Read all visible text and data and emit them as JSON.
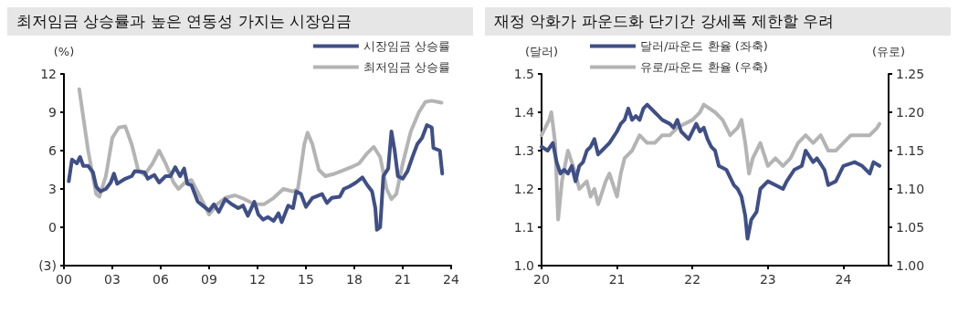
{
  "chart_data": [
    {
      "type": "line",
      "title": "최저임금 상승률과 높은 연동성 가지는 시장임금",
      "ylabel": "(%)",
      "legend": "top right",
      "grid": false,
      "marker": "none",
      "line_style": "solid",
      "xlim": [
        0,
        24
      ],
      "xticks": [
        {
          "value": 0,
          "label": "00"
        },
        {
          "value": 3,
          "label": "03"
        },
        {
          "value": 6,
          "label": "06"
        },
        {
          "value": 9,
          "label": "09"
        },
        12,
        15,
        18,
        21,
        24
      ],
      "ylim": [
        -3,
        12
      ],
      "yticks": [
        {
          "value": -3,
          "label": "(3)"
        },
        0,
        3,
        6,
        9,
        12
      ],
      "series": [
        {
          "name": "시장임금 상승률",
          "color": "#3f4f86",
          "x": [
            0.3,
            0.5,
            0.8,
            1.0,
            1.2,
            1.5,
            1.8,
            2.0,
            2.25,
            2.6,
            2.9,
            3.1,
            3.3,
            3.8,
            4.2,
            4.4,
            5.0,
            5.2,
            5.6,
            5.9,
            6.3,
            6.6,
            6.9,
            7.2,
            7.45,
            7.65,
            7.9,
            8.3,
            8.7,
            9.0,
            9.3,
            9.6,
            10.0,
            10.4,
            10.8,
            11.1,
            11.4,
            11.8,
            12.05,
            12.35,
            12.65,
            13.0,
            13.3,
            13.5,
            13.9,
            14.2,
            14.4,
            14.7,
            15.0,
            15.4,
            16.0,
            16.3,
            16.6,
            17.1,
            17.35,
            17.7,
            18.1,
            18.5,
            18.8,
            19.1,
            19.3,
            19.4,
            19.6,
            19.8,
            20.1,
            20.3,
            20.5,
            20.7,
            21.0,
            21.3,
            21.6,
            21.9,
            22.2,
            22.5,
            22.8,
            22.9,
            23.3,
            23.45
          ],
          "values": [
            3.6,
            5.3,
            5.0,
            5.5,
            4.8,
            4.8,
            4.3,
            3.2,
            2.8,
            3.0,
            3.5,
            4.2,
            3.4,
            3.8,
            4.0,
            4.4,
            4.3,
            3.8,
            4.1,
            3.5,
            4.0,
            4.0,
            4.7,
            4.0,
            4.6,
            3.4,
            3.3,
            2.0,
            1.6,
            1.3,
            1.8,
            1.2,
            2.2,
            1.8,
            1.5,
            1.7,
            0.9,
            2.0,
            1.0,
            0.6,
            0.8,
            0.5,
            1.1,
            0.4,
            1.7,
            1.5,
            2.8,
            2.6,
            1.6,
            2.3,
            2.6,
            1.9,
            2.3,
            2.4,
            3.0,
            3.2,
            3.5,
            3.9,
            3.3,
            2.8,
            1.5,
            -0.2,
            0.0,
            4.0,
            4.6,
            7.5,
            6.0,
            4.0,
            3.8,
            4.4,
            5.5,
            6.5,
            7.0,
            8.0,
            7.8,
            6.2,
            6.0,
            4.2
          ]
        },
        {
          "name": "최저임금 상승률",
          "color": "#b4b4b4",
          "x": [
            0.95,
            1.5,
            2.0,
            2.2,
            2.6,
            3.0,
            3.4,
            3.8,
            4.2,
            4.6,
            5.0,
            5.5,
            5.9,
            6.3,
            6.8,
            7.1,
            7.5,
            7.9,
            8.4,
            9.0,
            9.5,
            10.0,
            10.6,
            11.2,
            11.8,
            12.4,
            13.0,
            13.6,
            14.2,
            14.5,
            14.9,
            15.1,
            15.4,
            15.8,
            16.2,
            16.8,
            17.2,
            17.8,
            18.3,
            18.8,
            19.2,
            19.6,
            20.0,
            20.3,
            20.6,
            21.0,
            21.5,
            22.0,
            22.4,
            22.8,
            23.2,
            23.4
          ],
          "values": [
            10.8,
            6.0,
            2.6,
            2.4,
            4.0,
            7.0,
            7.8,
            7.9,
            6.5,
            4.5,
            4.1,
            5.0,
            6.0,
            5.0,
            3.5,
            3.0,
            3.5,
            3.7,
            2.5,
            1.0,
            1.8,
            2.3,
            2.5,
            2.2,
            1.8,
            1.8,
            2.3,
            3.0,
            2.8,
            3.0,
            6.5,
            7.4,
            6.5,
            4.5,
            4.0,
            4.2,
            4.4,
            4.7,
            5.0,
            5.8,
            6.3,
            5.5,
            3.0,
            2.2,
            2.6,
            5.0,
            7.5,
            9.0,
            9.8,
            9.9,
            9.8,
            9.75
          ]
        }
      ]
    },
    {
      "type": "line",
      "title": "재정 악화가 파운드화 단기간 강세폭 제한할 우려",
      "ylabel": "(달러)",
      "y2label": "(유로)",
      "legend": "top left",
      "grid": false,
      "marker": "none",
      "line_style": "solid",
      "xlim": [
        20,
        24.6
      ],
      "xticks": [
        20,
        21,
        22,
        23,
        24
      ],
      "ylim": [
        1.0,
        1.5
      ],
      "yticks": [
        {
          "value": 1.0,
          "label": "1.0"
        },
        1.1,
        1.2,
        1.3,
        1.4,
        1.5
      ],
      "y2lim": [
        1.0,
        1.25
      ],
      "y2ticks": [
        {
          "value": 1.0,
          "label": "1.00"
        },
        1.05,
        {
          "value": 1.1,
          "label": "1.10"
        },
        1.15,
        {
          "value": 1.2,
          "label": "1.20"
        },
        1.25
      ],
      "series": [
        {
          "name": "달러/파운드 환율 (좌축)",
          "color": "#3f4f86",
          "x": [
            20.0,
            20.08,
            20.15,
            20.2,
            20.25,
            20.3,
            20.35,
            20.4,
            20.45,
            20.5,
            20.55,
            20.6,
            20.65,
            20.7,
            20.75,
            20.8,
            20.9,
            21.0,
            21.05,
            21.1,
            21.15,
            21.2,
            21.25,
            21.3,
            21.35,
            21.4,
            21.5,
            21.55,
            21.6,
            21.7,
            21.75,
            21.8,
            21.85,
            21.95,
            22.05,
            22.1,
            22.15,
            22.2,
            22.25,
            22.3,
            22.35,
            22.45,
            22.5,
            22.55,
            22.6,
            22.65,
            22.7,
            22.73,
            22.78,
            22.85,
            22.9,
            23.0,
            23.1,
            23.2,
            23.25,
            23.35,
            23.45,
            23.5,
            23.6,
            23.65,
            23.75,
            23.8,
            23.9,
            24.0,
            24.15,
            24.25,
            24.35,
            24.4,
            24.48
          ],
          "values": [
            1.31,
            1.3,
            1.32,
            1.27,
            1.24,
            1.25,
            1.24,
            1.26,
            1.22,
            1.26,
            1.27,
            1.3,
            1.31,
            1.33,
            1.29,
            1.3,
            1.32,
            1.35,
            1.37,
            1.38,
            1.41,
            1.38,
            1.39,
            1.38,
            1.41,
            1.42,
            1.4,
            1.39,
            1.38,
            1.37,
            1.36,
            1.38,
            1.35,
            1.33,
            1.37,
            1.35,
            1.36,
            1.33,
            1.31,
            1.3,
            1.26,
            1.25,
            1.23,
            1.21,
            1.2,
            1.18,
            1.13,
            1.07,
            1.12,
            1.14,
            1.2,
            1.22,
            1.21,
            1.2,
            1.22,
            1.25,
            1.26,
            1.3,
            1.27,
            1.28,
            1.25,
            1.21,
            1.22,
            1.26,
            1.27,
            1.26,
            1.24,
            1.27,
            1.26
          ]
        },
        {
          "name": "유로/파운드 환율 (우축)",
          "color": "#b4b4b4",
          "axis": "y2",
          "x": [
            20.0,
            20.1,
            20.13,
            20.18,
            20.22,
            20.27,
            20.35,
            20.45,
            20.5,
            20.6,
            20.65,
            20.7,
            20.75,
            20.85,
            20.9,
            21.0,
            21.05,
            21.1,
            21.2,
            21.3,
            21.4,
            21.5,
            21.6,
            21.7,
            21.8,
            22.0,
            22.1,
            22.15,
            22.3,
            22.4,
            22.5,
            22.6,
            22.65,
            22.7,
            22.75,
            22.8,
            22.85,
            22.9,
            23.0,
            23.1,
            23.2,
            23.3,
            23.4,
            23.5,
            23.6,
            23.7,
            23.8,
            23.9,
            24.0,
            24.1,
            24.25,
            24.35,
            24.45,
            24.48
          ],
          "values": [
            1.17,
            1.19,
            1.2,
            1.16,
            1.06,
            1.11,
            1.15,
            1.12,
            1.1,
            1.11,
            1.09,
            1.1,
            1.08,
            1.11,
            1.12,
            1.09,
            1.12,
            1.14,
            1.15,
            1.17,
            1.16,
            1.16,
            1.17,
            1.17,
            1.18,
            1.19,
            1.2,
            1.21,
            1.2,
            1.19,
            1.17,
            1.18,
            1.19,
            1.16,
            1.12,
            1.14,
            1.15,
            1.16,
            1.13,
            1.14,
            1.13,
            1.14,
            1.16,
            1.17,
            1.16,
            1.17,
            1.15,
            1.15,
            1.16,
            1.17,
            1.17,
            1.17,
            1.18,
            1.185
          ]
        }
      ]
    }
  ]
}
